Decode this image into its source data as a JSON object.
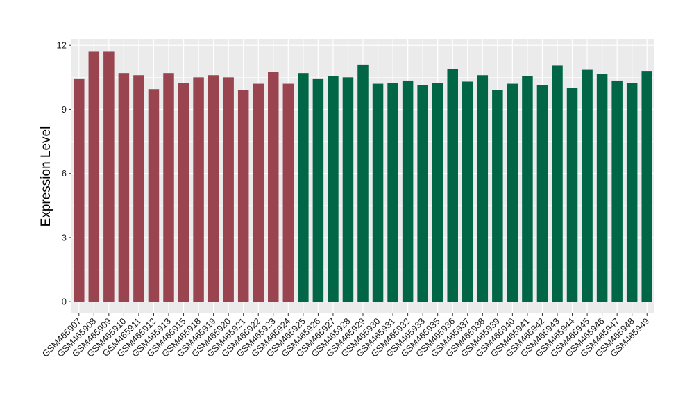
{
  "chart_data": {
    "type": "bar",
    "ylabel": "Expression Level",
    "xlabel": "",
    "title": "",
    "ylim": [
      -0.55,
      12.3
    ],
    "yticks": [
      0,
      3,
      6,
      9,
      12
    ],
    "grid": true,
    "colors": {
      "group1": "#9a4450",
      "group2": "#006646",
      "panel": "#ebebeb",
      "grid": "#ffffff"
    },
    "categories": [
      "GSM465907",
      "GSM465908",
      "GSM465909",
      "GSM465910",
      "GSM465911",
      "GSM465912",
      "GSM465913",
      "GSM465915",
      "GSM465918",
      "GSM465919",
      "GSM465920",
      "GSM465921",
      "GSM465922",
      "GSM465923",
      "GSM465924",
      "GSM465925",
      "GSM465926",
      "GSM465927",
      "GSM465928",
      "GSM465929",
      "GSM465930",
      "GSM465931",
      "GSM465932",
      "GSM465933",
      "GSM465935",
      "GSM465936",
      "GSM465937",
      "GSM465938",
      "GSM465939",
      "GSM465940",
      "GSM465941",
      "GSM465942",
      "GSM465943",
      "GSM465944",
      "GSM465945",
      "GSM465946",
      "GSM465947",
      "GSM465948",
      "GSM465949"
    ],
    "values": [
      10.45,
      11.7,
      11.7,
      10.7,
      10.6,
      9.95,
      10.7,
      10.25,
      10.5,
      10.6,
      10.5,
      9.9,
      10.2,
      10.75,
      10.2,
      10.7,
      10.45,
      10.55,
      10.5,
      11.1,
      10.2,
      10.25,
      10.35,
      10.15,
      10.25,
      10.9,
      10.3,
      10.6,
      9.9,
      10.2,
      10.55,
      10.15,
      11.05,
      10.0,
      10.85,
      10.65,
      10.35,
      10.25,
      10.8
    ],
    "groups": [
      1,
      1,
      1,
      1,
      1,
      1,
      1,
      1,
      1,
      1,
      1,
      1,
      1,
      1,
      1,
      2,
      2,
      2,
      2,
      2,
      2,
      2,
      2,
      2,
      2,
      2,
      2,
      2,
      2,
      2,
      2,
      2,
      2,
      2,
      2,
      2,
      2,
      2,
      2
    ]
  }
}
